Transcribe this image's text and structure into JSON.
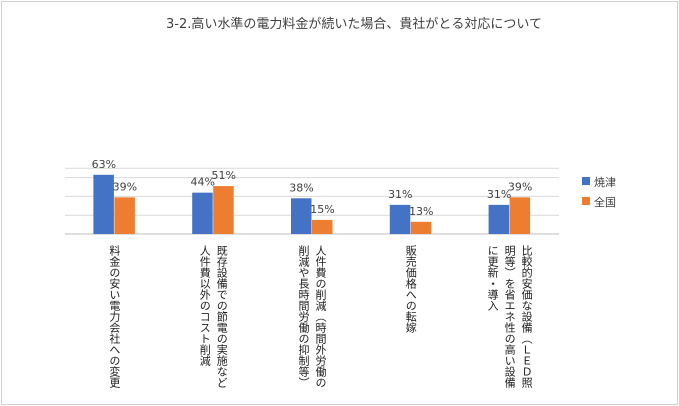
{
  "chart_data": {
    "type": "bar",
    "title": "3-2.高い水準の電力料金が続いた場合、貴社がとる対応について",
    "categories": [
      [
        "料金の安い電力会社への変更"
      ],
      [
        "既存設備での節電の実施など",
        "人件費以外のコスト削減"
      ],
      [
        "人件費の削減（時間外労働の",
        "削減や長時間労働の抑制等）"
      ],
      [
        "販売価格への転嫁"
      ],
      [
        "比較的安価な設備（ＬＥＤ照",
        "明等）を省エネ性の高い設備",
        "に更新・導入"
      ]
    ],
    "series": [
      {
        "name": "焼津",
        "color": "#4472c4",
        "values": [
          63,
          44,
          38,
          31,
          31
        ],
        "labels": [
          "63%",
          "44%",
          "38%",
          "31%",
          "31%"
        ]
      },
      {
        "name": "全国",
        "color": "#ed7d31",
        "values": [
          39,
          51,
          15,
          13,
          39
        ],
        "labels": [
          "39%",
          "51%",
          "15%",
          "13%",
          "39%"
        ]
      }
    ],
    "ylim": [
      0,
      70
    ],
    "grid": true,
    "legend": "right"
  }
}
